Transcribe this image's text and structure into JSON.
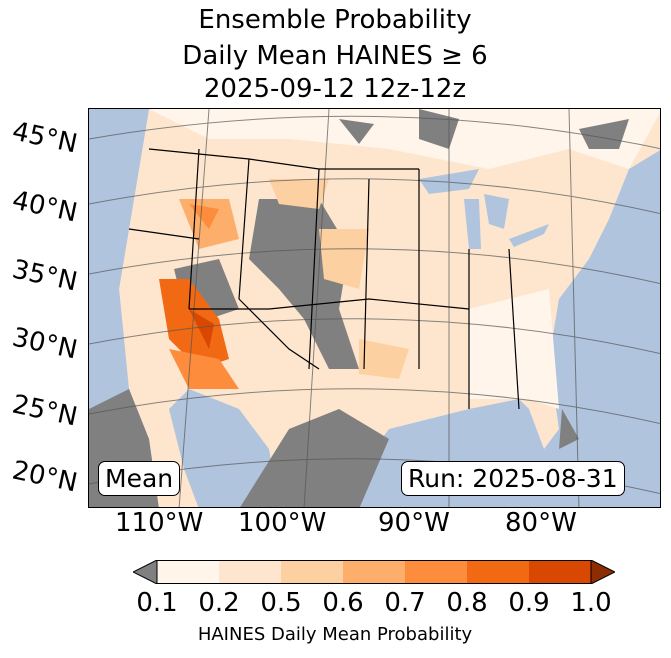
{
  "title": {
    "line1": "Ensemble Probability",
    "line2": "Daily Mean HAINES ≥ 6",
    "line3": "2025-09-12 12z-12z"
  },
  "map": {
    "lat_labels": [
      "45°N",
      "40°N",
      "35°N",
      "30°N",
      "25°N",
      "20°N"
    ],
    "lon_labels": [
      "110°W",
      "100°W",
      "90°W",
      "80°W"
    ],
    "mean_label": "Mean",
    "run_label": "Run: 2025-08-31",
    "colors": {
      "ocean": "#b0c4de",
      "missing": "#808080"
    }
  },
  "colorbar": {
    "ticks": [
      "0.1",
      "0.2",
      "0.5",
      "0.6",
      "0.7",
      "0.8",
      "0.9",
      "1.0"
    ],
    "colors": [
      "#fff5eb",
      "#fee6ce",
      "#fdd0a2",
      "#fdae6b",
      "#fd8d3c",
      "#f16913",
      "#d94801"
    ],
    "under_color": "#808080",
    "over_color": "#8c2d04",
    "label": "HAINES Daily Mean Probability"
  }
}
